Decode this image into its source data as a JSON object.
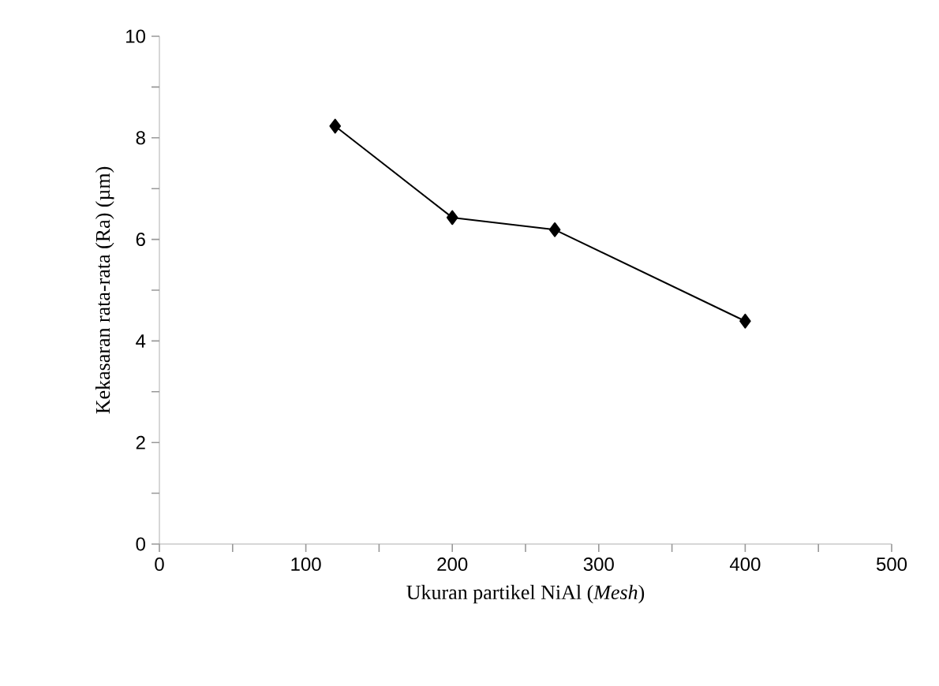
{
  "chart_data": {
    "type": "line",
    "xlabel": "Ukuran partikel NiAl (*Mesh*)",
    "ylabel": "Kekasaran rata-rata (Ra) (µm)",
    "x": [
      120,
      200,
      270,
      400
    ],
    "series": [
      {
        "color": "#000000",
        "values": [
          8.23,
          6.43,
          6.19,
          4.39
        ]
      }
    ],
    "xlim": [
      0,
      500
    ],
    "xticks": [
      0,
      {
        "value": 50,
        "label": null
      },
      100,
      {
        "value": 150,
        "label": null
      },
      200,
      {
        "value": 250,
        "label": null
      },
      300,
      {
        "value": 350,
        "label": null
      },
      400,
      {
        "value": 450,
        "label": null
      },
      500
    ],
    "ylim": [
      0,
      10
    ],
    "yticks": [
      0,
      {
        "value": 1,
        "label": null
      },
      2,
      {
        "value": 3,
        "label": null
      },
      4,
      {
        "value": 5,
        "label": null
      },
      6,
      {
        "value": 7,
        "label": null
      },
      8,
      {
        "value": 9,
        "label": null
      },
      10
    ],
    "marker": "diamond",
    "line_style": "solid"
  }
}
